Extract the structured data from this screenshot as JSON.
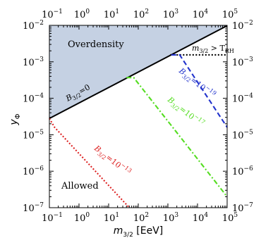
{
  "chart_data": {
    "type": "line",
    "title": "",
    "xlabel": "m",
    "xlabel_sub": "3/2",
    "xlabel_unit": " [EeV]",
    "ylabel": "y",
    "ylabel_sub": "Φ",
    "x_scale": "log",
    "y_scale": "log",
    "xlim": [
      0.1,
      100000
    ],
    "ylim": [
      1e-07,
      0.01
    ],
    "x_ticks": [
      {
        "value": 0.1,
        "base": "10",
        "exp": "−1"
      },
      {
        "value": 1,
        "base": "10",
        "exp": "0"
      },
      {
        "value": 10,
        "base": "10",
        "exp": "1"
      },
      {
        "value": 100,
        "base": "10",
        "exp": "2"
      },
      {
        "value": 1000,
        "base": "10",
        "exp": "3"
      },
      {
        "value": 10000,
        "base": "10",
        "exp": "4"
      },
      {
        "value": 100000,
        "base": "10",
        "exp": "5"
      }
    ],
    "y_ticks": [
      {
        "value": 1e-07,
        "base": "10",
        "exp": "−7"
      },
      {
        "value": 1e-06,
        "base": "10",
        "exp": "−6"
      },
      {
        "value": 1e-05,
        "base": "10",
        "exp": "−5"
      },
      {
        "value": 0.0001,
        "base": "10",
        "exp": "−4"
      },
      {
        "value": 0.001,
        "base": "10",
        "exp": "−3"
      },
      {
        "value": 0.01,
        "base": "10",
        "exp": "−2"
      }
    ],
    "grid": false,
    "legend": "none",
    "regions": [
      {
        "label": "Overdensity",
        "color": "#c5d1e3"
      },
      {
        "label": "Allowed",
        "color": "#ffffff"
      }
    ],
    "series": [
      {
        "label_main": "B",
        "label_sub": "3/2",
        "label_rest": "=0",
        "color": "#000000",
        "style": "solid",
        "points": [
          [
            0.1,
            2.8e-05
          ],
          [
            100000,
            0.0098
          ]
        ]
      },
      {
        "label_main": "m",
        "label_sub": "3/2",
        "label_mid": " > T",
        "label_sub2": "RH",
        "label_rest": "",
        "color": "#000000",
        "style": "dotted",
        "points": [
          [
            1200,
            0.00155
          ],
          [
            100000,
            0.00155
          ]
        ]
      },
      {
        "label_main": "B",
        "label_sub": "3/2",
        "label_rest": "=10",
        "label_sup": "−19",
        "color": "#2233cc",
        "style": "dashed",
        "points": [
          [
            1300,
            0.00155
          ],
          [
            2500,
            0.00155
          ],
          [
            100000,
            1.6e-05
          ]
        ]
      },
      {
        "label_main": "B",
        "label_sub": "3/2",
        "label_rest": "=10",
        "label_sup": "−17",
        "color": "#55dd22",
        "style": "dashdot",
        "points": [
          [
            40,
            0.00037
          ],
          [
            70,
            0.00037
          ],
          [
            100000,
            2e-07
          ]
        ]
      },
      {
        "label_main": "B",
        "label_sub": "3/2",
        "label_rest": "=10",
        "label_sup": "−13",
        "color": "#dd2222",
        "style": "dotted",
        "points": [
          [
            0.1,
            2.8e-05
          ],
          [
            0.15,
            1.6e-05
          ],
          [
            50,
            1e-07
          ]
        ]
      }
    ]
  }
}
